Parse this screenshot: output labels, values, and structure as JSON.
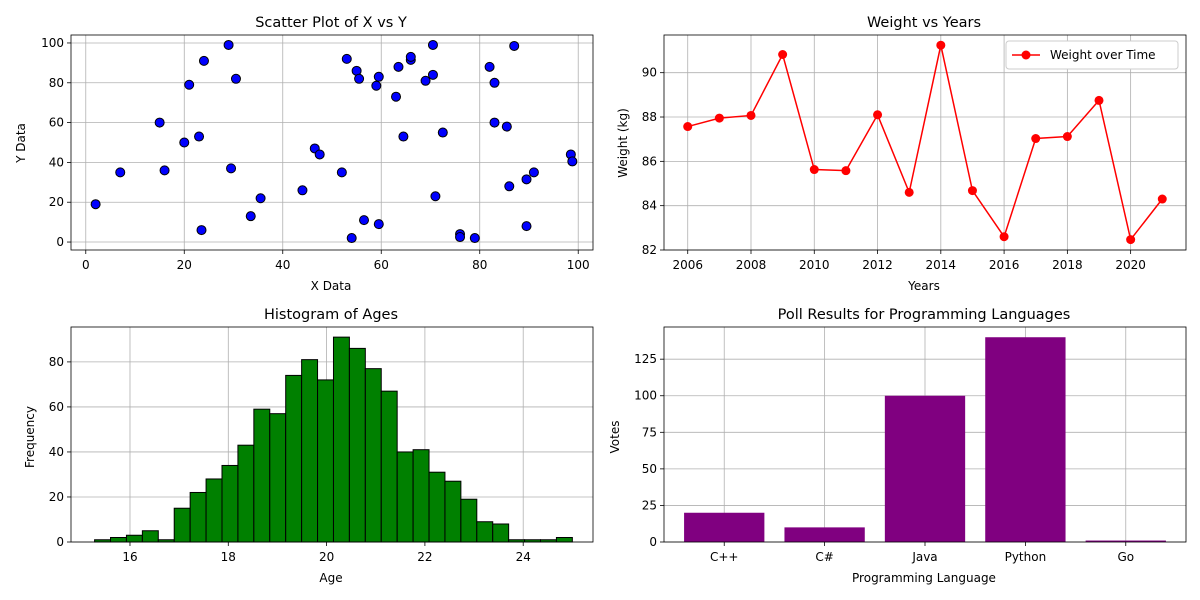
{
  "chart_data": [
    {
      "type": "scatter",
      "title": "Scatter Plot of X vs Y",
      "xlabel": "X Data",
      "ylabel": "Y Data",
      "xlim": [
        -3,
        103
      ],
      "ylim": [
        -4,
        104
      ],
      "xticks": [
        0,
        20,
        40,
        60,
        80,
        100
      ],
      "yticks": [
        0,
        20,
        40,
        60,
        80,
        100
      ],
      "grid": true,
      "marker_color": "#0000ff",
      "marker_edge": "#000000",
      "points": [
        [
          2,
          19
        ],
        [
          7,
          35
        ],
        [
          15,
          60
        ],
        [
          16,
          36
        ],
        [
          20,
          50
        ],
        [
          21,
          79
        ],
        [
          23,
          53
        ],
        [
          23.5,
          6
        ],
        [
          24,
          91
        ],
        [
          29,
          99
        ],
        [
          29.5,
          37
        ],
        [
          30.5,
          82
        ],
        [
          33.5,
          13
        ],
        [
          35.5,
          22
        ],
        [
          44,
          26
        ],
        [
          46.5,
          47
        ],
        [
          47.5,
          44
        ],
        [
          52,
          35
        ],
        [
          53,
          92
        ],
        [
          54,
          2
        ],
        [
          55,
          86
        ],
        [
          55.5,
          82
        ],
        [
          56.5,
          11
        ],
        [
          59,
          78.5
        ],
        [
          59.5,
          83
        ],
        [
          59.5,
          9
        ],
        [
          63,
          73
        ],
        [
          63.5,
          88
        ],
        [
          64.5,
          53
        ],
        [
          66,
          91.5
        ],
        [
          66,
          93
        ],
        [
          69,
          81
        ],
        [
          70.5,
          99
        ],
        [
          70.5,
          84
        ],
        [
          71,
          23
        ],
        [
          72.5,
          55
        ],
        [
          76,
          4
        ],
        [
          76,
          2.5
        ],
        [
          79,
          2
        ],
        [
          82,
          88
        ],
        [
          83,
          80
        ],
        [
          83,
          60
        ],
        [
          85.5,
          58
        ],
        [
          86,
          28
        ],
        [
          87,
          98.5
        ],
        [
          89.5,
          8
        ],
        [
          89.5,
          31.5
        ],
        [
          91,
          35
        ],
        [
          98.5,
          44
        ],
        [
          98.8,
          40.5
        ]
      ]
    },
    {
      "type": "line",
      "title": "Weight vs Years",
      "xlabel": "Years",
      "ylabel": "Weight (kg)",
      "xlim": [
        2005.25,
        21.75
      ],
      "ylim": [
        82,
        91.7
      ],
      "xticks": [
        2006,
        2008,
        2010,
        2012,
        2014,
        2016,
        2018,
        2020
      ],
      "yticks": [
        82,
        84,
        86,
        88,
        90
      ],
      "grid": true,
      "legend_position": "top-right",
      "series": [
        {
          "name": "Weight over Time",
          "color": "#ff0000",
          "x": [
            2006,
            2007,
            2008,
            2009,
            2010,
            2011,
            2012,
            2013,
            2014,
            2015,
            2016,
            2017,
            2018,
            2019,
            2020,
            2021
          ],
          "values": [
            87.57,
            87.95,
            88.07,
            90.82,
            85.63,
            85.58,
            88.1,
            84.6,
            91.24,
            84.68,
            82.6,
            87.03,
            87.12,
            88.75,
            82.47,
            84.3
          ]
        }
      ]
    },
    {
      "type": "bar",
      "subtype": "histogram",
      "title": "Histogram of Ages",
      "xlabel": "Age",
      "ylabel": "Frequency",
      "xlim": [
        14.8,
        25.42
      ],
      "ylim": [
        0,
        95.5
      ],
      "xticks": [
        16,
        18,
        20,
        22,
        24
      ],
      "yticks": [
        0,
        20,
        40,
        60,
        80
      ],
      "grid": true,
      "bar_color": "#008000",
      "edge_color": "#000000",
      "bin_start": 15.28,
      "bin_width": 0.324,
      "values": [
        1,
        2,
        3,
        5,
        1,
        15,
        22,
        28,
        34,
        43,
        59,
        57,
        74,
        81,
        72,
        91,
        86,
        77,
        67,
        40,
        41,
        31,
        27,
        19,
        9,
        8,
        1,
        1,
        1,
        2
      ]
    },
    {
      "type": "bar",
      "title": "Poll Results for Programming Languages",
      "xlabel": "Programming Language",
      "ylabel": "Votes",
      "ylim": [
        0,
        147
      ],
      "yticks": [
        0,
        25,
        50,
        75,
        100,
        125
      ],
      "grid": true,
      "bar_color": "#800080",
      "categories": [
        "C++",
        "C#",
        "Java",
        "Python",
        "Go"
      ],
      "values": [
        20,
        10,
        100,
        140,
        1
      ]
    }
  ]
}
